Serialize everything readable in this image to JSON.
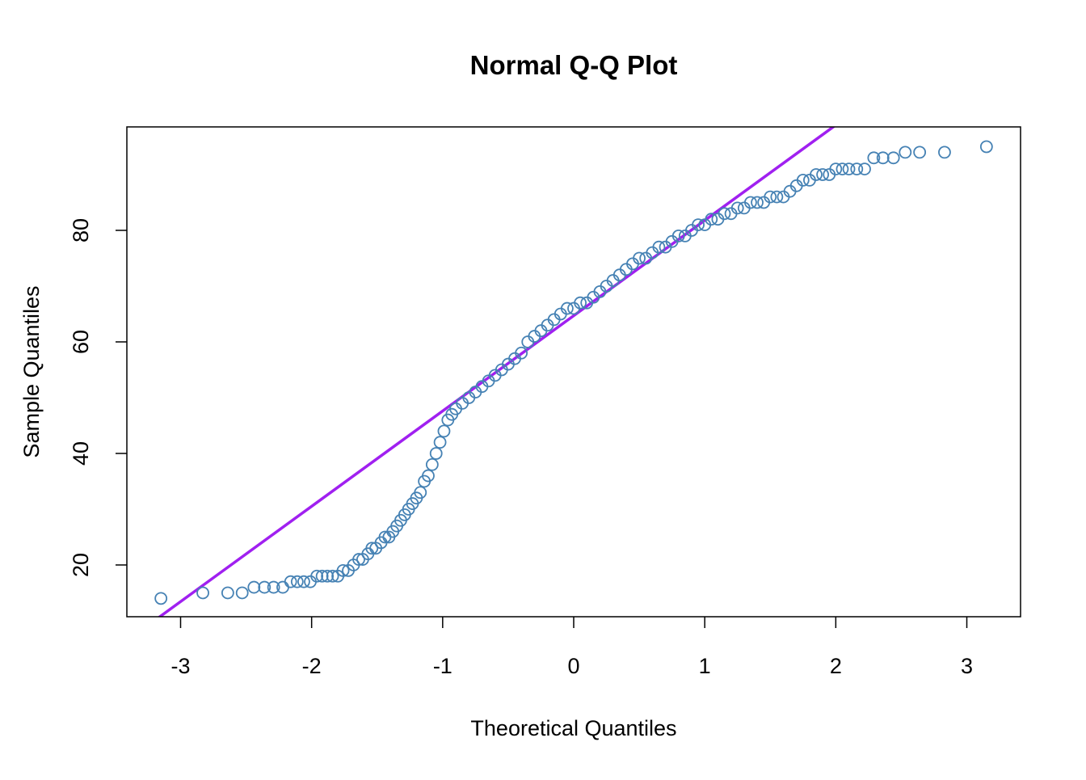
{
  "chart_data": {
    "type": "scatter",
    "title": "Normal Q-Q Plot",
    "x_label": "Theoretical Quantiles",
    "y_label": "Sample Quantiles",
    "xlim": [
      -3.41,
      3.41
    ],
    "ylim": [
      10.72,
      98.55
    ],
    "xticks": [
      -3,
      -2,
      -1,
      0,
      1,
      2,
      3
    ],
    "yticks": [
      20,
      40,
      60,
      80
    ],
    "color": "#4682b4",
    "reference_line": {
      "intercept": 64.7,
      "slope": 17.09,
      "color": "#a020f0"
    },
    "x": [
      -3.15,
      -2.83,
      -2.64,
      -2.53,
      -2.44,
      -2.36,
      -2.29,
      -2.22,
      -2.16,
      -2.11,
      -2.06,
      -2.01,
      -1.96,
      -1.92,
      -1.88,
      -1.84,
      -1.8,
      -1.76,
      -1.72,
      -1.68,
      -1.64,
      -1.61,
      -1.57,
      -1.54,
      -1.51,
      -1.47,
      -1.44,
      -1.41,
      -1.38,
      -1.35,
      -1.32,
      -1.29,
      -1.26,
      -1.23,
      -1.2,
      -1.17,
      -1.14,
      -1.11,
      -1.08,
      -1.05,
      -1.02,
      -0.99,
      -0.96,
      -0.93,
      -0.9,
      -0.85,
      -0.8,
      -0.75,
      -0.7,
      -0.65,
      -0.6,
      -0.55,
      -0.5,
      -0.45,
      -0.4,
      -0.35,
      -0.3,
      -0.25,
      -0.2,
      -0.15,
      -0.1,
      -0.05,
      0,
      0.05,
      0.1,
      0.15,
      0.2,
      0.25,
      0.3,
      0.35,
      0.4,
      0.45,
      0.5,
      0.55,
      0.6,
      0.65,
      0.7,
      0.75,
      0.8,
      0.85,
      0.9,
      0.95,
      1.0,
      1.05,
      1.1,
      1.15,
      1.2,
      1.25,
      1.3,
      1.35,
      1.4,
      1.45,
      1.5,
      1.55,
      1.6,
      1.65,
      1.7,
      1.75,
      1.8,
      1.85,
      1.9,
      1.95,
      2.0,
      2.05,
      2.1,
      2.16,
      2.22,
      2.29,
      2.36,
      2.44,
      2.53,
      2.64,
      2.83,
      3.15
    ],
    "values": [
      14,
      15,
      15,
      15,
      16,
      16,
      16,
      16,
      17,
      17,
      17,
      17,
      18,
      18,
      18,
      18,
      18,
      19,
      19,
      20,
      21,
      21,
      22,
      23,
      23,
      24,
      25,
      25,
      26,
      27,
      28,
      29,
      30,
      31,
      32,
      33,
      35,
      36,
      38,
      40,
      42,
      44,
      46,
      47,
      48,
      49,
      50,
      51,
      52,
      53,
      54,
      55,
      56,
      57,
      58,
      60,
      61,
      62,
      63,
      64,
      65,
      66,
      66,
      67,
      67,
      68,
      69,
      70,
      71,
      72,
      73,
      74,
      75,
      75,
      76,
      77,
      77,
      78,
      79,
      79,
      80,
      81,
      81,
      82,
      82,
      83,
      83,
      84,
      84,
      85,
      85,
      85,
      86,
      86,
      86,
      87,
      88,
      89,
      89,
      90,
      90,
      90,
      91,
      91,
      91,
      91,
      91,
      93,
      93,
      93,
      94,
      94,
      94,
      95
    ]
  }
}
